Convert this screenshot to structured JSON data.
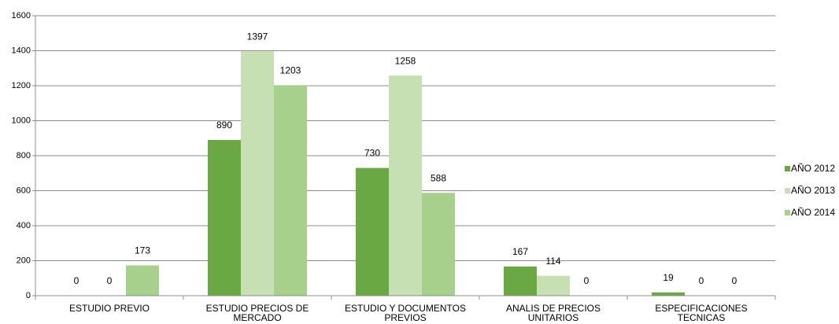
{
  "chart_data": {
    "type": "bar",
    "categories": [
      "ESTUDIO PREVIO",
      "ESTUDIO PRECIOS DE MERCADO",
      "ESTUDIO Y DOCUMENTOS PREVIOS",
      "ANALIS DE PRECIOS UNITARIOS",
      "ESPECIFICACIONES TECNICAS"
    ],
    "series": [
      {
        "name": "AÑO 2012",
        "color": "#6aa843",
        "values": [
          0,
          890,
          730,
          167,
          19
        ]
      },
      {
        "name": "AÑO 2013",
        "color": "#c6e0b4",
        "values": [
          0,
          1397,
          1258,
          114,
          0
        ]
      },
      {
        "name": "AÑO 2014",
        "color": "#a8d08d",
        "values": [
          173,
          1203,
          588,
          0,
          0
        ]
      }
    ],
    "ylim": [
      0,
      1600
    ],
    "yticks": [
      0,
      200,
      400,
      600,
      800,
      1000,
      1200,
      1400,
      1600
    ],
    "grid": true,
    "legend": "right"
  }
}
